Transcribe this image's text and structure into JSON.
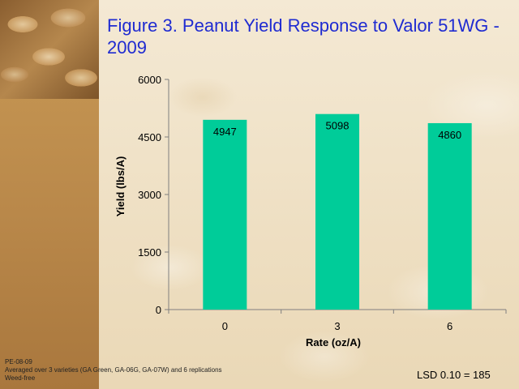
{
  "slide": {
    "title": "Figure 3. Peanut Yield Response to Valor 51WG - 2009",
    "footnotes": [
      "PE-08-09",
      "Averaged over 3 varieties (GA Green, GA-06G, GA-07W) and 6 replications",
      "Weed-free"
    ],
    "lsd": "LSD 0.10 = 185"
  },
  "colors": {
    "bar": "#00cc99",
    "title": "#1f2bd1"
  },
  "chart_data": {
    "type": "bar",
    "categories": [
      "0",
      "3",
      "6"
    ],
    "values": [
      4947,
      5098,
      4860
    ],
    "data_labels": [
      "4947",
      "5098",
      "4860"
    ],
    "xlabel": "Rate (oz/A)",
    "ylabel": "Yield (lbs/A)",
    "ylim": [
      0,
      6000
    ],
    "yticks": [
      0,
      1500,
      3000,
      4500,
      6000
    ],
    "grid": false,
    "legend": "none"
  }
}
